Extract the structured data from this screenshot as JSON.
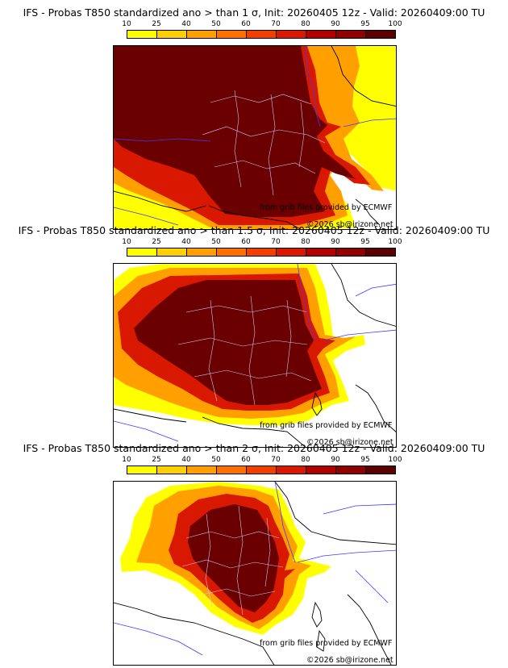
{
  "panels": [
    {
      "title": "IFS - Probas T850  standardized ano > than 1 σ, Init: 20260405 12z - Valid: 20260409:00 TU"
    },
    {
      "title": "IFS - Probas T850  standardized ano > than 1.5 σ, Init: 20260405 12z - Valid: 20260409:00 TU"
    },
    {
      "title": "IFS - Probas T850  standardized ano > than 2 σ, Init: 20260405 12z - Valid: 20260409:00 TU"
    }
  ],
  "colorbar": {
    "ticks": [
      "10",
      "25",
      "40",
      "50",
      "60",
      "70",
      "80",
      "90",
      "95",
      "100"
    ],
    "colors": [
      "#ffff00",
      "#ffd000",
      "#ffa000",
      "#ff7000",
      "#f04000",
      "#d81800",
      "#b00000",
      "#900000",
      "#5a0000"
    ]
  },
  "credits": {
    "source": "from grib files provided by ECMWF",
    "copyright": "©2026 sb@irizone.net"
  }
}
